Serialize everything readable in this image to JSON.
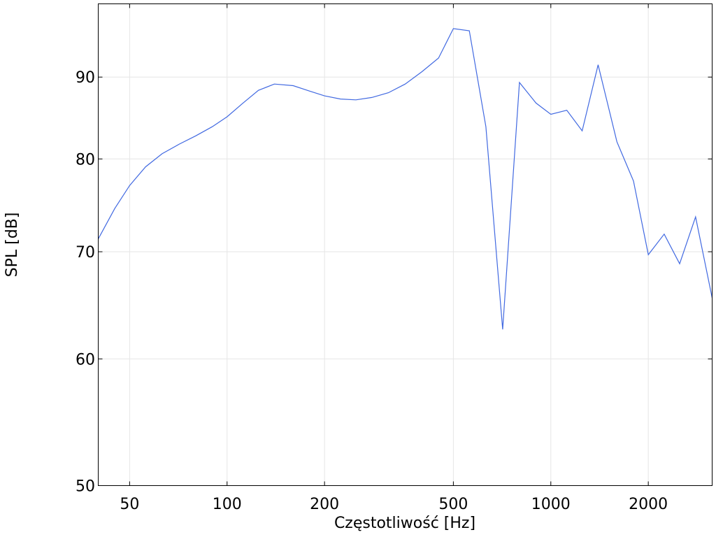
{
  "chart_data": {
    "type": "line",
    "title": "",
    "xlabel": "Częstotliwość [Hz]",
    "ylabel": "SPL [dB]",
    "x_scale": "log",
    "y_scale": "log",
    "xlim": [
      40,
      3150
    ],
    "ylim": [
      50,
      100
    ],
    "x_ticks": [
      50,
      100,
      200,
      500,
      1000,
      2000
    ],
    "x_tick_labels": [
      "50",
      "100",
      "200",
      "500",
      "1000",
      "2000"
    ],
    "y_ticks": [
      50,
      60,
      70,
      80,
      90
    ],
    "y_tick_labels": [
      "50",
      "60",
      "70",
      "80",
      "90"
    ],
    "grid": true,
    "legend": "none",
    "series": [
      {
        "color": "#4169e1",
        "x": [
          40,
          45,
          50,
          56,
          63,
          71,
          80,
          90,
          100,
          112,
          125,
          140,
          160,
          180,
          200,
          224,
          250,
          280,
          315,
          355,
          400,
          450,
          500,
          560,
          630,
          710,
          800,
          900,
          1000,
          1120,
          1250,
          1400,
          1600,
          1800,
          2000,
          2240,
          2500,
          2800,
          3150
        ],
        "y": [
          71.3,
          74.5,
          77.0,
          79.1,
          80.6,
          81.7,
          82.7,
          83.8,
          85.0,
          86.7,
          88.3,
          89.1,
          88.9,
          88.2,
          87.6,
          87.2,
          87.1,
          87.4,
          88.0,
          89.1,
          90.7,
          92.5,
          96.5,
          96.2,
          83.8,
          62.6,
          89.3,
          86.7,
          85.3,
          85.8,
          83.3,
          91.6,
          82.0,
          77.5,
          69.7,
          71.8,
          68.8,
          73.6,
          65.5
        ]
      }
    ]
  }
}
